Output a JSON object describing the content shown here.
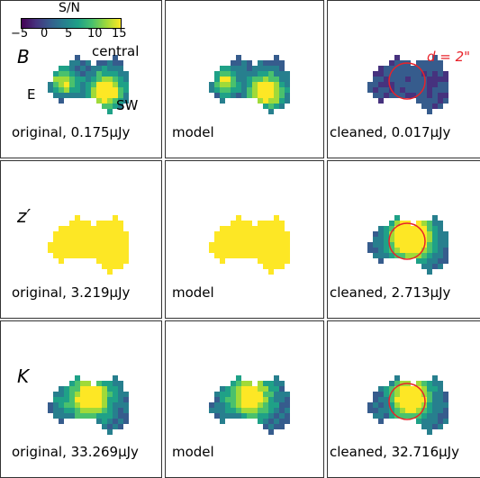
{
  "colorbar": {
    "title": "S/N",
    "ticks": [
      "−5",
      "0",
      "5",
      "10",
      "15"
    ],
    "range": [
      -5,
      15
    ],
    "colormap": [
      "#440154",
      "#46327e",
      "#365c8d",
      "#277f8e",
      "#1fa187",
      "#4ac16d",
      "#a0da39",
      "#fde725"
    ]
  },
  "rows": [
    {
      "band": "B",
      "features": {
        "east": "E",
        "central": "central",
        "southwest": "SW"
      },
      "aperture_label": "d = 2\"",
      "panels": [
        {
          "kind": "original",
          "caption": "original, 0.175μJy"
        },
        {
          "kind": "model",
          "caption": "model"
        },
        {
          "kind": "cleaned",
          "caption": "cleaned, 0.017μJy"
        }
      ]
    },
    {
      "band": "z′",
      "panels": [
        {
          "kind": "original",
          "caption": "original, 3.219μJy"
        },
        {
          "kind": "model",
          "caption": "model"
        },
        {
          "kind": "cleaned",
          "caption": "cleaned, 2.713μJy"
        }
      ]
    },
    {
      "band": "K",
      "panels": [
        {
          "kind": "original",
          "caption": "original, 33.269μJy"
        },
        {
          "kind": "model",
          "caption": "model"
        },
        {
          "kind": "cleaned",
          "caption": "cleaned, 32.716μJy"
        }
      ]
    }
  ],
  "colors": {
    "aperture": "#e8222a",
    "background": "#ffffff"
  }
}
